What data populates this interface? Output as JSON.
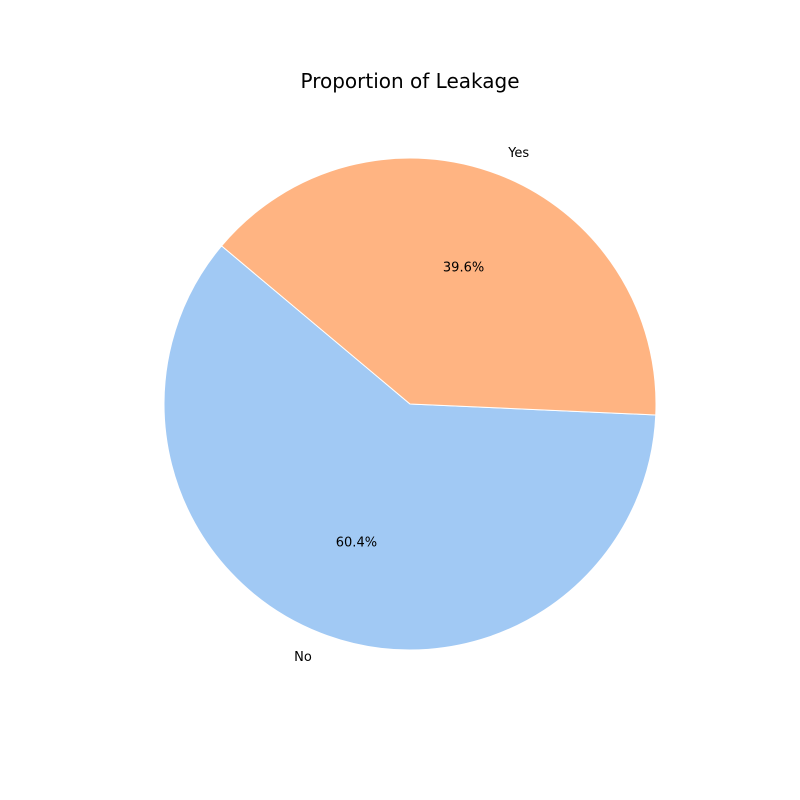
{
  "chart_data": {
    "type": "pie",
    "title": "Proportion of Leakage",
    "slices": [
      {
        "label": "No",
        "value": 60.4,
        "pct_label": "60.4%",
        "color": "#a1c9f4"
      },
      {
        "label": "Yes",
        "value": 39.6,
        "pct_label": "39.6%",
        "color": "#ffb482"
      }
    ],
    "start_angle_deg": 140,
    "direction": "counterclockwise",
    "legend": "none"
  }
}
